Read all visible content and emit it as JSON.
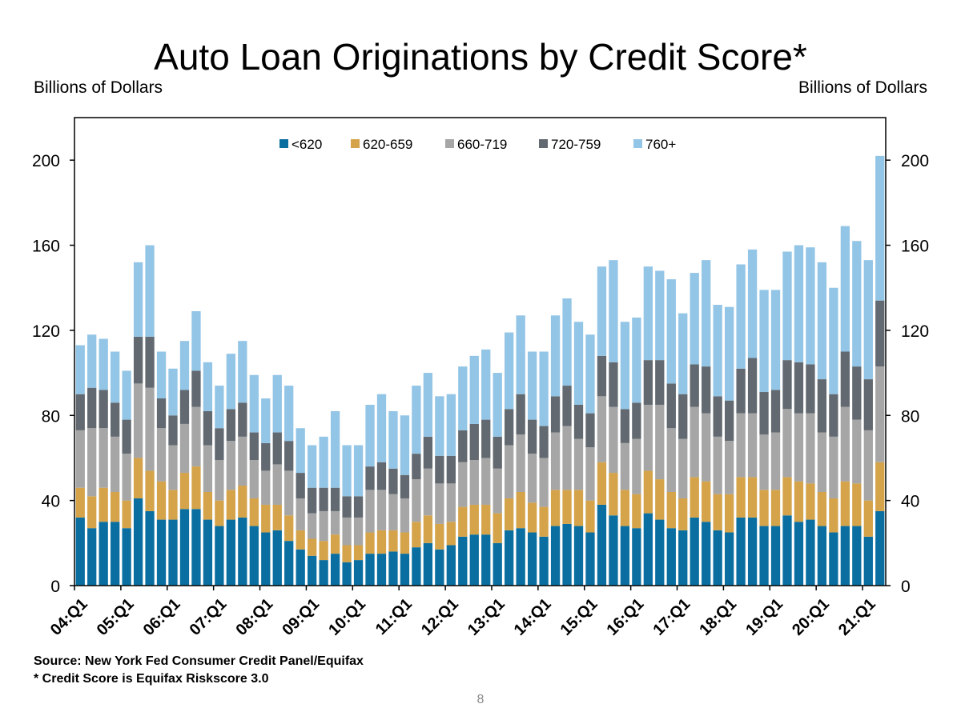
{
  "slide": {
    "title": "Auto Loan Originations by Credit Score*",
    "unit_left": "Billions of Dollars",
    "unit_right": "Billions of Dollars",
    "source": "Source: New York Fed Consumer Credit Panel/Equifax",
    "footnote": "* Credit Score is Equifax Riskscore 3.0",
    "page_number": "8"
  },
  "chart_data": {
    "type": "bar",
    "stacked": true,
    "title": "Auto Loan Originations by Credit Score*",
    "ylabel": "Billions of Dollars",
    "y2label": "Billions of Dollars",
    "ylim": [
      0,
      220
    ],
    "yticks": [
      0,
      40,
      80,
      120,
      160,
      200
    ],
    "legend_position": "top-center",
    "x_tick_labels": [
      "04:Q1",
      "05:Q1",
      "06:Q1",
      "07:Q1",
      "08:Q1",
      "09:Q1",
      "10:Q1",
      "11:Q1",
      "12:Q1",
      "13:Q1",
      "14:Q1",
      "15:Q1",
      "16:Q1",
      "17:Q1",
      "18:Q1",
      "19:Q1",
      "20:Q1",
      "21:Q1"
    ],
    "categories": [
      "04:Q1",
      "04:Q2",
      "04:Q3",
      "04:Q4",
      "05:Q1",
      "05:Q2",
      "05:Q3",
      "05:Q4",
      "06:Q1",
      "06:Q2",
      "06:Q3",
      "06:Q4",
      "07:Q1",
      "07:Q2",
      "07:Q3",
      "07:Q4",
      "08:Q1",
      "08:Q2",
      "08:Q3",
      "08:Q4",
      "09:Q1",
      "09:Q2",
      "09:Q3",
      "09:Q4",
      "10:Q1",
      "10:Q2",
      "10:Q3",
      "10:Q4",
      "11:Q1",
      "11:Q2",
      "11:Q3",
      "11:Q4",
      "12:Q1",
      "12:Q2",
      "12:Q3",
      "12:Q4",
      "13:Q1",
      "13:Q2",
      "13:Q3",
      "13:Q4",
      "14:Q1",
      "14:Q2",
      "14:Q3",
      "14:Q4",
      "15:Q1",
      "15:Q2",
      "15:Q3",
      "15:Q4",
      "16:Q1",
      "16:Q2",
      "16:Q3",
      "16:Q4",
      "17:Q1",
      "17:Q2",
      "17:Q3",
      "17:Q4",
      "18:Q1",
      "18:Q2",
      "18:Q3",
      "18:Q4",
      "19:Q1",
      "19:Q2",
      "19:Q3",
      "19:Q4",
      "20:Q1",
      "20:Q2",
      "20:Q3",
      "20:Q4",
      "21:Q1",
      "21:Q2"
    ],
    "series": [
      {
        "name": "<620",
        "color": "#0a6fa0",
        "values": [
          32,
          27,
          30,
          30,
          27,
          41,
          35,
          31,
          31,
          36,
          36,
          31,
          28,
          31,
          32,
          28,
          25,
          26,
          21,
          17,
          14,
          12,
          15,
          11,
          12,
          15,
          15,
          16,
          15,
          18,
          20,
          17,
          19,
          23,
          24,
          24,
          20,
          26,
          27,
          25,
          23,
          28,
          29,
          28,
          25,
          38,
          33,
          28,
          27,
          34,
          31,
          27,
          26,
          32,
          30,
          26,
          25,
          32,
          32,
          28,
          28,
          33,
          30,
          31,
          28,
          25,
          28,
          28,
          23,
          35
        ]
      },
      {
        "name": "620-659",
        "color": "#d4a34a",
        "values": [
          14,
          15,
          16,
          14,
          13,
          19,
          19,
          18,
          14,
          17,
          20,
          13,
          12,
          14,
          15,
          13,
          13,
          12,
          12,
          9,
          8,
          9,
          9,
          8,
          7,
          10,
          11,
          10,
          10,
          12,
          13,
          12,
          11,
          14,
          14,
          14,
          14,
          15,
          17,
          14,
          14,
          17,
          16,
          17,
          15,
          20,
          20,
          17,
          16,
          20,
          19,
          17,
          15,
          19,
          19,
          17,
          18,
          19,
          19,
          17,
          17,
          18,
          19,
          17,
          16,
          16,
          21,
          20,
          17,
          23
        ]
      },
      {
        "name": "660-719",
        "color": "#a6a6a6",
        "values": [
          27,
          32,
          28,
          26,
          22,
          35,
          39,
          25,
          21,
          23,
          28,
          22,
          19,
          23,
          23,
          18,
          16,
          19,
          21,
          15,
          12,
          14,
          11,
          13,
          13,
          20,
          19,
          17,
          16,
          20,
          22,
          19,
          18,
          21,
          21,
          22,
          21,
          25,
          27,
          23,
          23,
          27,
          30,
          24,
          25,
          31,
          31,
          22,
          26,
          31,
          35,
          30,
          28,
          33,
          32,
          27,
          25,
          30,
          30,
          26,
          27,
          32,
          32,
          33,
          28,
          29,
          35,
          30,
          33,
          45
        ]
      },
      {
        "name": "720-759",
        "color": "#626970",
        "values": [
          17,
          19,
          18,
          16,
          16,
          22,
          24,
          14,
          14,
          16,
          17,
          16,
          15,
          15,
          16,
          13,
          13,
          15,
          14,
          12,
          12,
          11,
          11,
          10,
          10,
          11,
          13,
          12,
          11,
          12,
          15,
          13,
          13,
          15,
          17,
          18,
          15,
          17,
          19,
          16,
          15,
          17,
          19,
          16,
          16,
          19,
          21,
          16,
          17,
          21,
          21,
          21,
          21,
          20,
          22,
          19,
          19,
          21,
          26,
          20,
          20,
          23,
          24,
          23,
          25,
          20,
          26,
          25,
          24,
          31
        ]
      },
      {
        "name": "760+",
        "color": "#93c5e6",
        "values": [
          23,
          25,
          24,
          24,
          23,
          35,
          43,
          22,
          22,
          23,
          28,
          23,
          20,
          26,
          29,
          27,
          21,
          27,
          26,
          21,
          20,
          24,
          36,
          24,
          24,
          29,
          32,
          27,
          28,
          32,
          30,
          28,
          29,
          30,
          32,
          33,
          30,
          36,
          37,
          32,
          35,
          38,
          41,
          39,
          37,
          42,
          48,
          41,
          40,
          44,
          42,
          49,
          38,
          43,
          50,
          43,
          44,
          49,
          51,
          48,
          47,
          51,
          55,
          55,
          55,
          50,
          59,
          59,
          56,
          68
        ]
      }
    ]
  }
}
